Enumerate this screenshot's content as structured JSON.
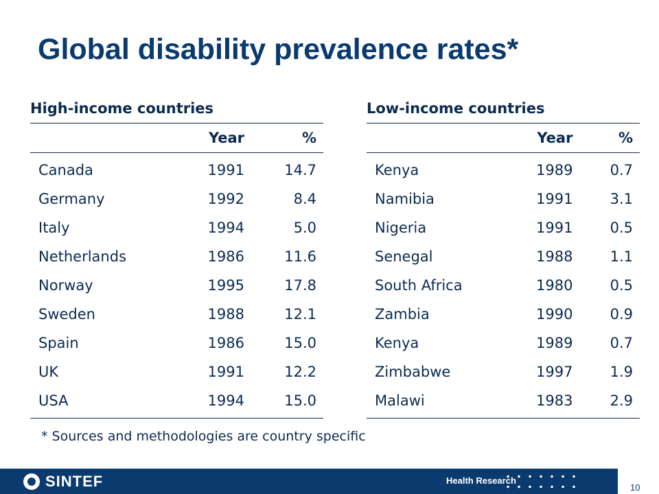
{
  "title": "Global disability prevalence rates*",
  "tables": {
    "high": {
      "heading": "High-income countries",
      "columns": [
        "",
        "Year",
        "%"
      ],
      "rows": [
        [
          "Canada",
          "1991",
          "14.7"
        ],
        [
          "Germany",
          "1992",
          "8.4"
        ],
        [
          "Italy",
          "1994",
          "5.0"
        ],
        [
          "Netherlands",
          "1986",
          "11.6"
        ],
        [
          "Norway",
          "1995",
          "17.8"
        ],
        [
          "Sweden",
          "1988",
          "12.1"
        ],
        [
          "Spain",
          "1986",
          "15.0"
        ],
        [
          "UK",
          "1991",
          "12.2"
        ],
        [
          "USA",
          "1994",
          "15.0"
        ]
      ]
    },
    "low": {
      "heading": "Low-income countries",
      "columns": [
        "",
        "Year",
        "%"
      ],
      "rows": [
        [
          "Kenya",
          "1989",
          "0.7"
        ],
        [
          "Namibia",
          "1991",
          "3.1"
        ],
        [
          "Nigeria",
          "1991",
          "0.5"
        ],
        [
          "Senegal",
          "1988",
          "1.1"
        ],
        [
          "South Africa",
          "1980",
          "0.5"
        ],
        [
          "Zambia",
          "1990",
          "0.9"
        ],
        [
          "Kenya",
          "1989",
          "0.7"
        ],
        [
          "Zimbabwe",
          "1997",
          "1.9"
        ],
        [
          "Malawi",
          "1983",
          "2.9"
        ]
      ]
    }
  },
  "footnote": "* Sources and methodologies are country specific",
  "footer": {
    "logo_text": "SINTEF",
    "department": "Health Research",
    "page_number": "10"
  },
  "colors": {
    "title": "#0a3a6e",
    "text": "#0a2a50",
    "footer_bar": "#0a3a6e"
  }
}
